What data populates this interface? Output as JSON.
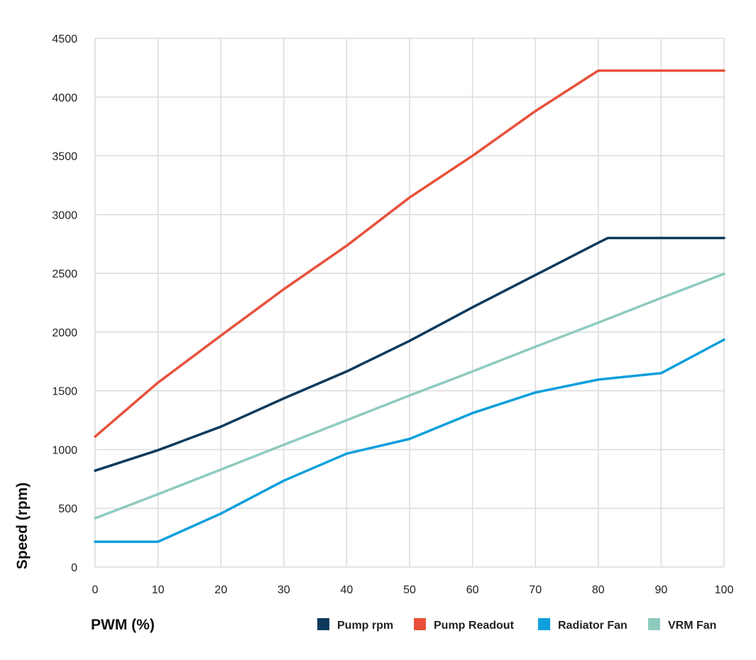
{
  "chart_data": {
    "type": "line",
    "title": "",
    "xlabel": "PWM (%)",
    "ylabel": "Speed (rpm)",
    "xlim": [
      0,
      100
    ],
    "ylim": [
      0,
      4500
    ],
    "x_ticks": [
      0,
      10,
      20,
      30,
      40,
      50,
      60,
      70,
      80,
      90,
      100
    ],
    "y_ticks": [
      0,
      500,
      1000,
      1500,
      2000,
      2500,
      3000,
      3500,
      4000,
      4500
    ],
    "grid": "on",
    "legend_position": "bottom-right",
    "series": [
      {
        "name": "Pump rpm",
        "color": "#0d3a5c",
        "points": [
          [
            0,
            820
          ],
          [
            10,
            995
          ],
          [
            20,
            1195
          ],
          [
            30,
            1435
          ],
          [
            40,
            1665
          ],
          [
            50,
            1925
          ],
          [
            60,
            2210
          ],
          [
            70,
            2485
          ],
          [
            80,
            2760
          ],
          [
            81.5,
            2800
          ],
          [
            90,
            2800
          ],
          [
            100,
            2800
          ]
        ]
      },
      {
        "name": "Pump Readout",
        "color": "#e8503a",
        "points": [
          [
            0,
            1110
          ],
          [
            10,
            1570
          ],
          [
            20,
            1970
          ],
          [
            30,
            2365
          ],
          [
            40,
            2735
          ],
          [
            50,
            3145
          ],
          [
            60,
            3500
          ],
          [
            70,
            3880
          ],
          [
            80,
            4225
          ],
          [
            90,
            4225
          ],
          [
            100,
            4225
          ]
        ]
      },
      {
        "name": "Radiator Fan",
        "color": "#0e9fdc",
        "points": [
          [
            0,
            215
          ],
          [
            10,
            215
          ],
          [
            20,
            455
          ],
          [
            30,
            735
          ],
          [
            40,
            965
          ],
          [
            50,
            1090
          ],
          [
            60,
            1310
          ],
          [
            70,
            1485
          ],
          [
            80,
            1595
          ],
          [
            90,
            1650
          ],
          [
            100,
            1935
          ]
        ]
      },
      {
        "name": "VRM Fan",
        "color": "#8ecbbf",
        "points": [
          [
            0,
            415
          ],
          [
            10,
            620
          ],
          [
            20,
            830
          ],
          [
            30,
            1040
          ],
          [
            40,
            1250
          ],
          [
            50,
            1460
          ],
          [
            60,
            1665
          ],
          [
            70,
            1875
          ],
          [
            80,
            2080
          ],
          [
            90,
            2290
          ],
          [
            100,
            2495
          ]
        ]
      }
    ]
  }
}
